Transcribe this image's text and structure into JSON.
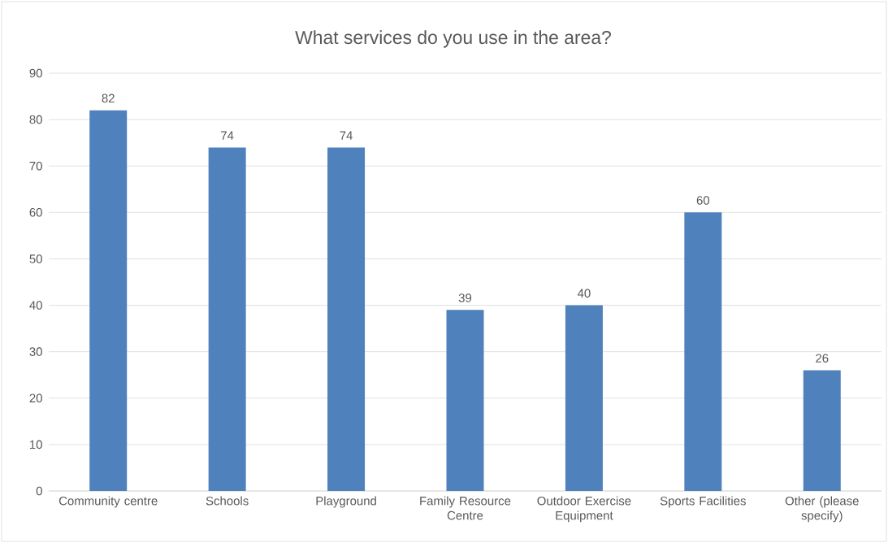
{
  "chart_data": {
    "type": "bar",
    "title": "What services do you use in the area?",
    "categories": [
      "Community centre",
      "Schools",
      "Playground",
      "Family Resource Centre",
      "Outdoor Exercise Equipment",
      "Sports Facilities",
      "Other (please specify)"
    ],
    "values": [
      82,
      74,
      74,
      39,
      40,
      60,
      26
    ],
    "color": "#4f81bd",
    "ylim": [
      0,
      90
    ],
    "yticks": [
      0,
      10,
      20,
      30,
      40,
      50,
      60,
      70,
      80,
      90
    ],
    "grid": "y",
    "data_labels": true
  }
}
